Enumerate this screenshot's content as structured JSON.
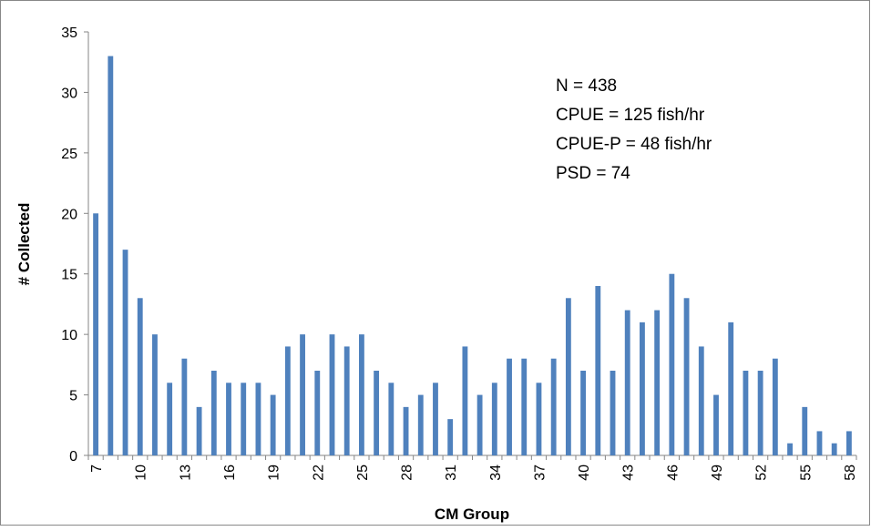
{
  "chart_data": {
    "type": "bar",
    "x_label": "CM Group",
    "y_label": "# Collected",
    "annotations": [
      "N = 438",
      "CPUE = 125 fish/hr",
      "CPUE-P = 48 fish/hr",
      "PSD = 74"
    ],
    "categories": [
      "7",
      null,
      null,
      "10",
      null,
      null,
      "13",
      null,
      null,
      "16",
      null,
      null,
      "19",
      null,
      null,
      "22",
      null,
      null,
      "25",
      null,
      null,
      "28",
      null,
      null,
      "31",
      null,
      null,
      "34",
      null,
      null,
      "37",
      null,
      null,
      "40",
      null,
      null,
      "43",
      null,
      null,
      "46",
      null,
      null,
      "49",
      null,
      null,
      "52",
      null,
      null,
      "55",
      null,
      null,
      "58"
    ],
    "values": [
      20,
      33,
      17,
      13,
      10,
      6,
      8,
      4,
      7,
      6,
      6,
      6,
      5,
      9,
      10,
      7,
      10,
      9,
      10,
      7,
      6,
      4,
      5,
      6,
      3,
      9,
      5,
      6,
      8,
      8,
      6,
      8,
      13,
      7,
      14,
      7,
      12,
      11,
      12,
      15,
      13,
      9,
      5,
      11,
      7,
      7,
      8,
      1,
      4,
      2,
      1,
      2
    ],
    "color": "#4f81bd",
    "ylim": [
      0,
      35
    ],
    "yticks": [
      0,
      5,
      10,
      15,
      20,
      25,
      30,
      35
    ],
    "grid": false
  }
}
